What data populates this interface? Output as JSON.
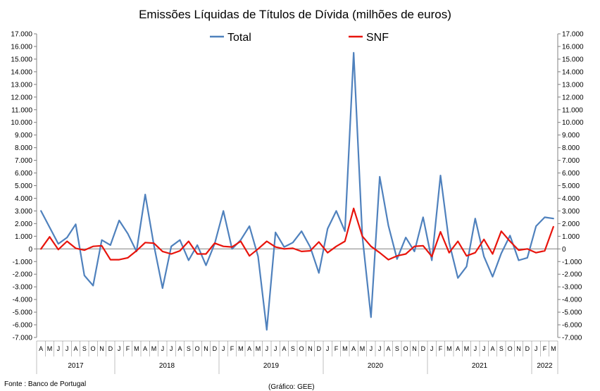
{
  "chart_data": {
    "type": "line",
    "title": "Emissões Líquidas de Títulos de Dívida (milhões de euros)",
    "ylim": [
      -7000,
      17000
    ],
    "ytick_step": 1000,
    "ytick_labels": [
      "-7.000",
      "-6.000",
      "-5.000",
      "-4.000",
      "-3.000",
      "-2.000",
      "-1.000",
      "0",
      "1.000",
      "2.000",
      "3.000",
      "4.000",
      "5.000",
      "6.000",
      "7.000",
      "8.000",
      "9.000",
      "10.000",
      "11.000",
      "12.000",
      "13.000",
      "14.000",
      "15.000",
      "16.000",
      "17.000"
    ],
    "grid": false,
    "legend_placement": "top-center",
    "categories": [
      "A",
      "M",
      "J",
      "J",
      "A",
      "S",
      "O",
      "N",
      "D",
      "J",
      "F",
      "M",
      "A",
      "M",
      "J",
      "J",
      "A",
      "S",
      "O",
      "N",
      "D",
      "J",
      "F",
      "M",
      "A",
      "M",
      "J",
      "J",
      "A",
      "S",
      "O",
      "N",
      "D",
      "J",
      "F",
      "M",
      "A",
      "M",
      "J",
      "J",
      "A",
      "S",
      "O",
      "N",
      "D",
      "J",
      "F",
      "M",
      "A",
      "M",
      "J",
      "J",
      "A",
      "S",
      "O",
      "N",
      "D",
      "J",
      "F",
      "M"
    ],
    "years": [
      {
        "label": "2017",
        "start": 0,
        "end": 9
      },
      {
        "label": "2018",
        "start": 9,
        "end": 21
      },
      {
        "label": "2019",
        "start": 21,
        "end": 33
      },
      {
        "label": "2020",
        "start": 33,
        "end": 45
      },
      {
        "label": "2021",
        "start": 45,
        "end": 57
      },
      {
        "label": "2022",
        "start": 57,
        "end": 60
      }
    ],
    "series": [
      {
        "name": "Total",
        "color": "#4f81bd",
        "values": [
          3000,
          1700,
          400,
          900,
          1950,
          -2100,
          -2900,
          700,
          300,
          2250,
          1200,
          -200,
          4300,
          300,
          -3100,
          200,
          700,
          -900,
          300,
          -1300,
          400,
          3000,
          0,
          700,
          1800,
          -600,
          -6400,
          1300,
          150,
          500,
          1400,
          150,
          -1900,
          1600,
          3000,
          1400,
          15500,
          1000,
          -5400,
          5700,
          1850,
          -800,
          900,
          -200,
          2500,
          -900,
          5800,
          500,
          -2300,
          -1400,
          2400,
          -600,
          -2200,
          -350,
          1050,
          -900,
          -700,
          1800,
          2500,
          2400
        ]
      },
      {
        "name": "SNF",
        "color": "#e8140c",
        "values": [
          0,
          950,
          -50,
          600,
          50,
          -100,
          200,
          250,
          -850,
          -850,
          -700,
          -150,
          500,
          450,
          -200,
          -400,
          -150,
          600,
          -400,
          -400,
          450,
          200,
          150,
          600,
          -550,
          0,
          600,
          150,
          0,
          50,
          -200,
          -150,
          550,
          -300,
          200,
          600,
          3200,
          1000,
          200,
          -300,
          -850,
          -550,
          -400,
          200,
          250,
          -600,
          1350,
          -300,
          600,
          -550,
          -300,
          750,
          -400,
          1400,
          600,
          -100,
          0,
          -300,
          -150,
          1750
        ]
      }
    ]
  },
  "notes": {
    "source": "Fonte : Banco de Portugal",
    "credit": "(Gráfico: GEE)"
  }
}
